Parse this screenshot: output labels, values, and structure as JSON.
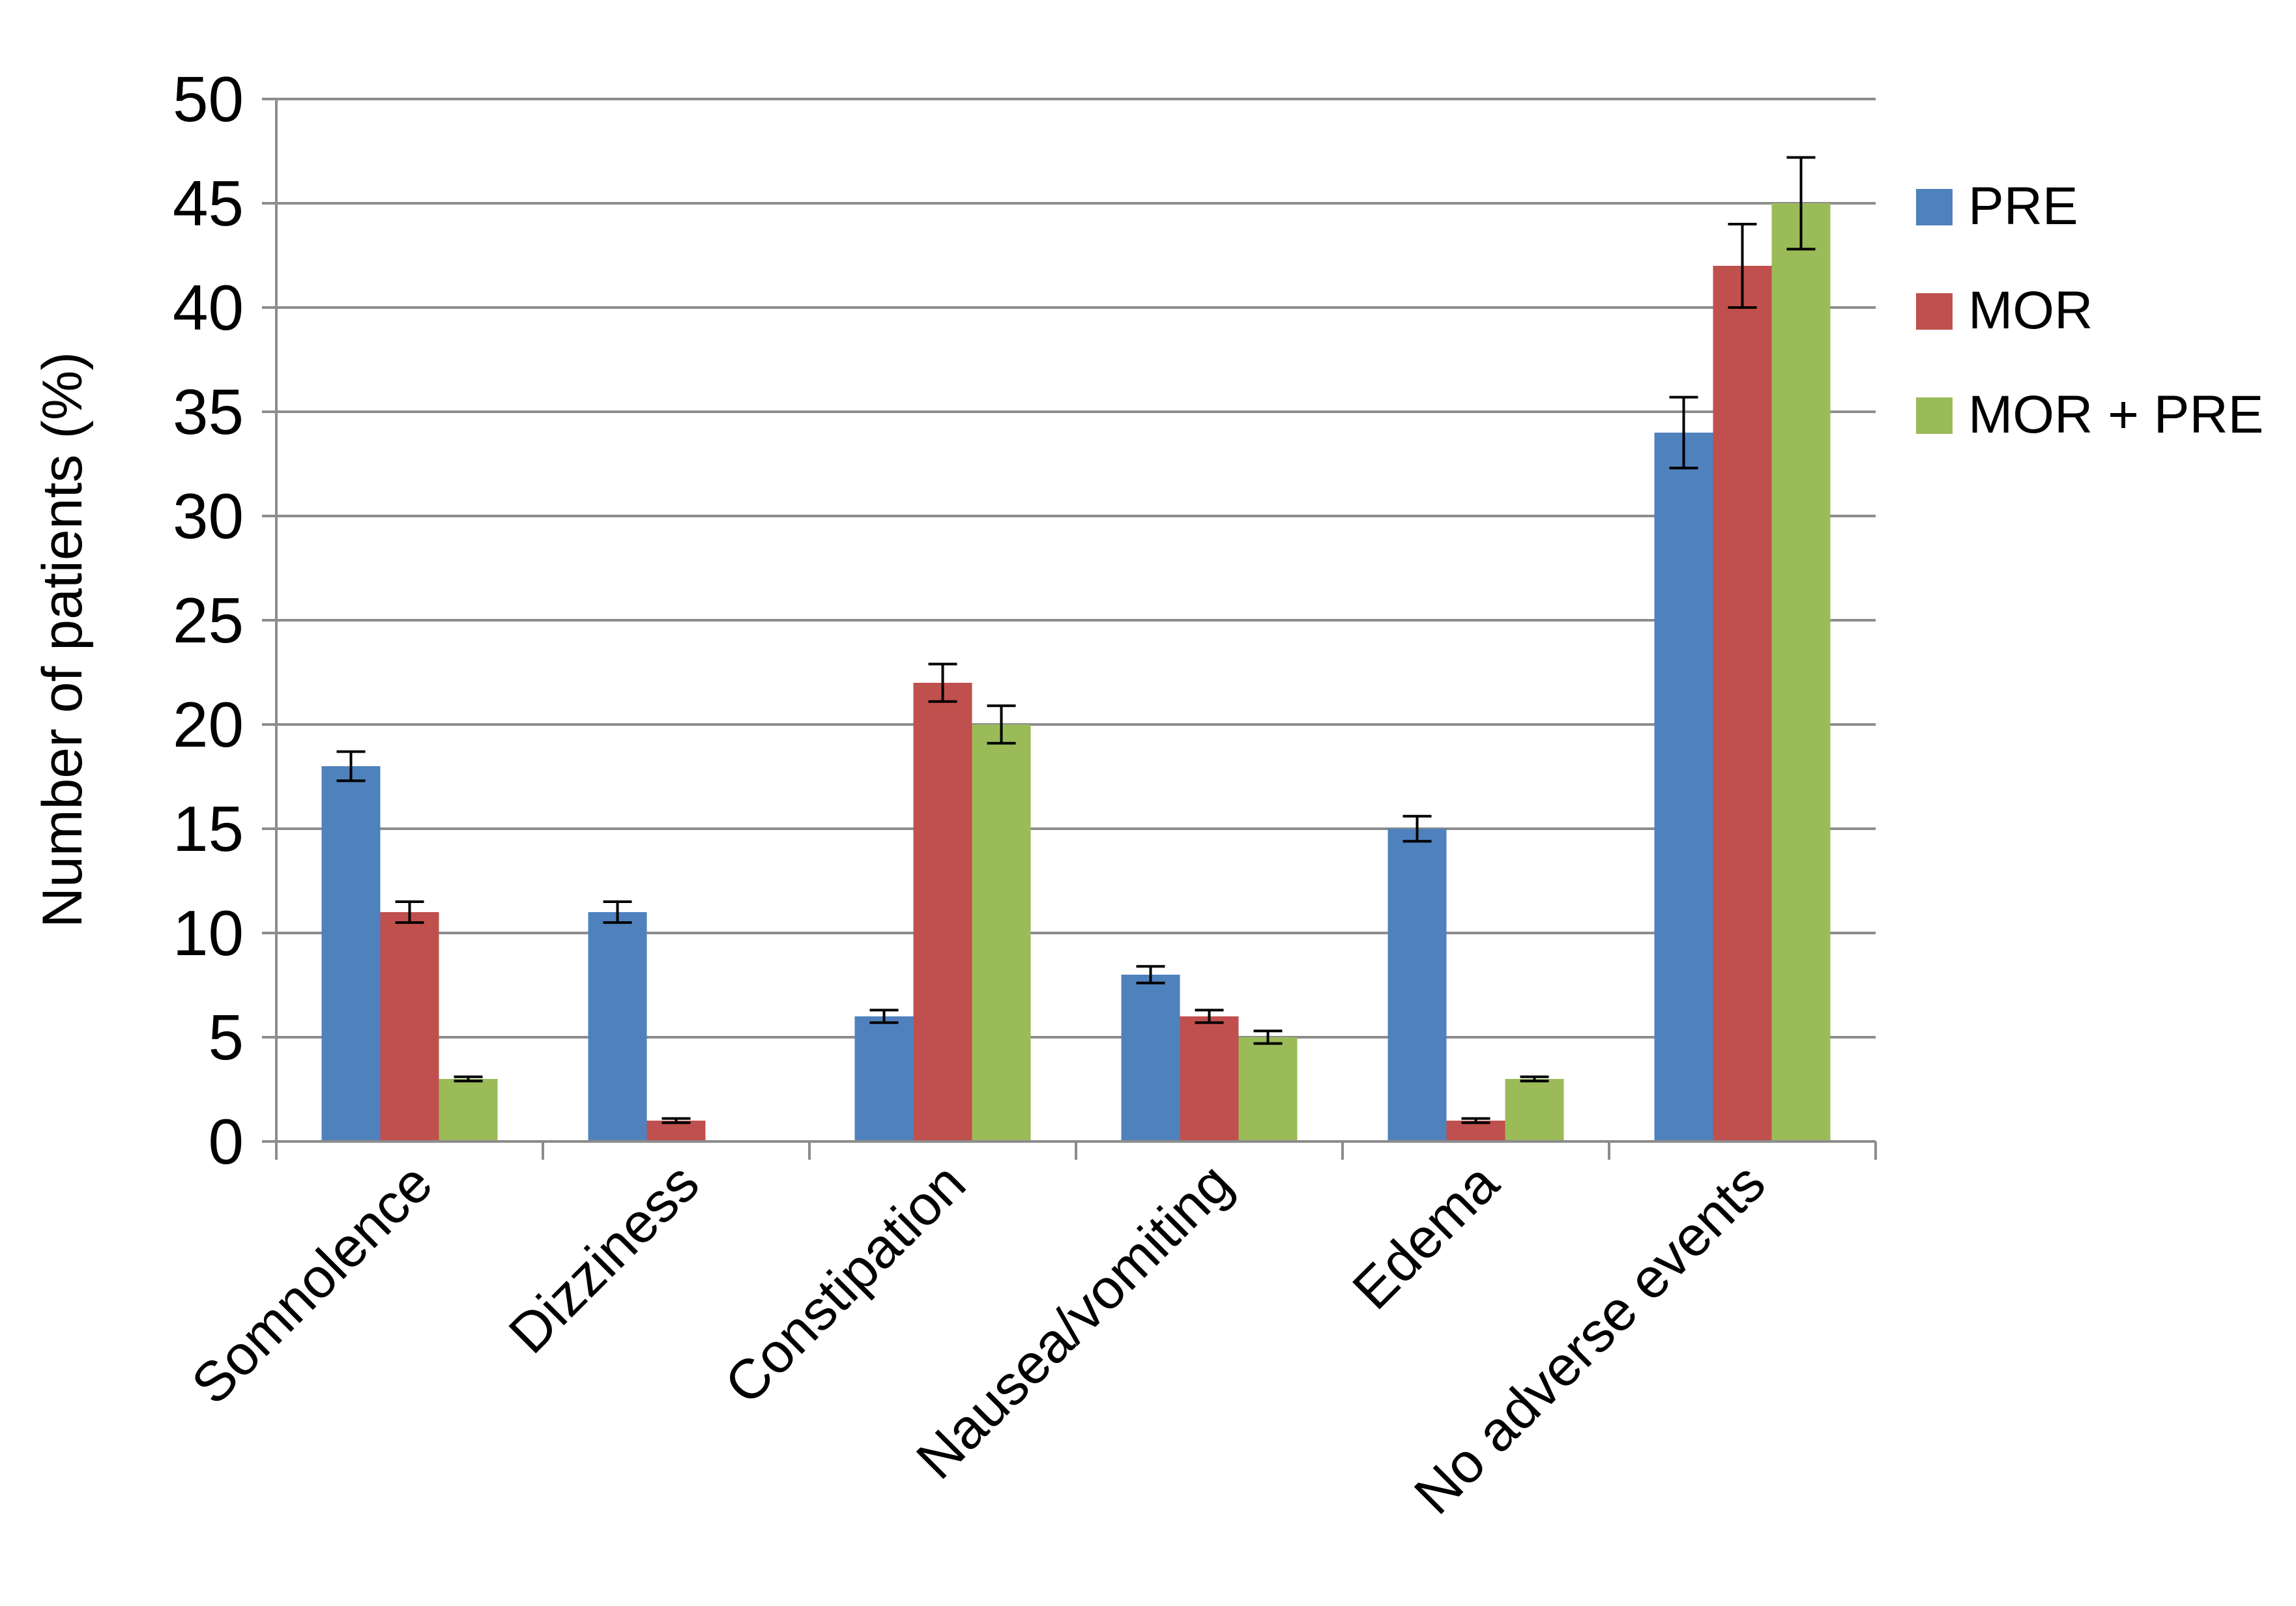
{
  "chart_data": {
    "type": "bar",
    "title": "",
    "xlabel": "",
    "ylabel": "Number of patients (%)",
    "ylim": [
      0,
      50
    ],
    "yticks": [
      0,
      5,
      10,
      15,
      20,
      25,
      30,
      35,
      40,
      45,
      50
    ],
    "grid": true,
    "legend_position": "right",
    "categories": [
      "Somnolence",
      "Dizziness",
      "Constipation",
      "Nausea/vomiting",
      "Edema",
      "No adverse events"
    ],
    "series": [
      {
        "name": "PRE",
        "color": "#4F81BD",
        "values": [
          18,
          11,
          6,
          8,
          15,
          34
        ],
        "errors": [
          0.7,
          0.5,
          0.3,
          0.4,
          0.6,
          1.7
        ]
      },
      {
        "name": "MOR",
        "color": "#C0504D",
        "values": [
          11,
          1,
          22,
          6,
          1,
          42
        ],
        "errors": [
          0.5,
          0.1,
          0.9,
          0.3,
          0.1,
          2.0
        ]
      },
      {
        "name": "MOR + PRE",
        "color": "#9BBB59",
        "values": [
          3,
          0,
          20,
          5,
          3,
          45
        ],
        "errors": [
          0.1,
          0,
          0.9,
          0.3,
          0.1,
          2.2
        ]
      }
    ]
  }
}
